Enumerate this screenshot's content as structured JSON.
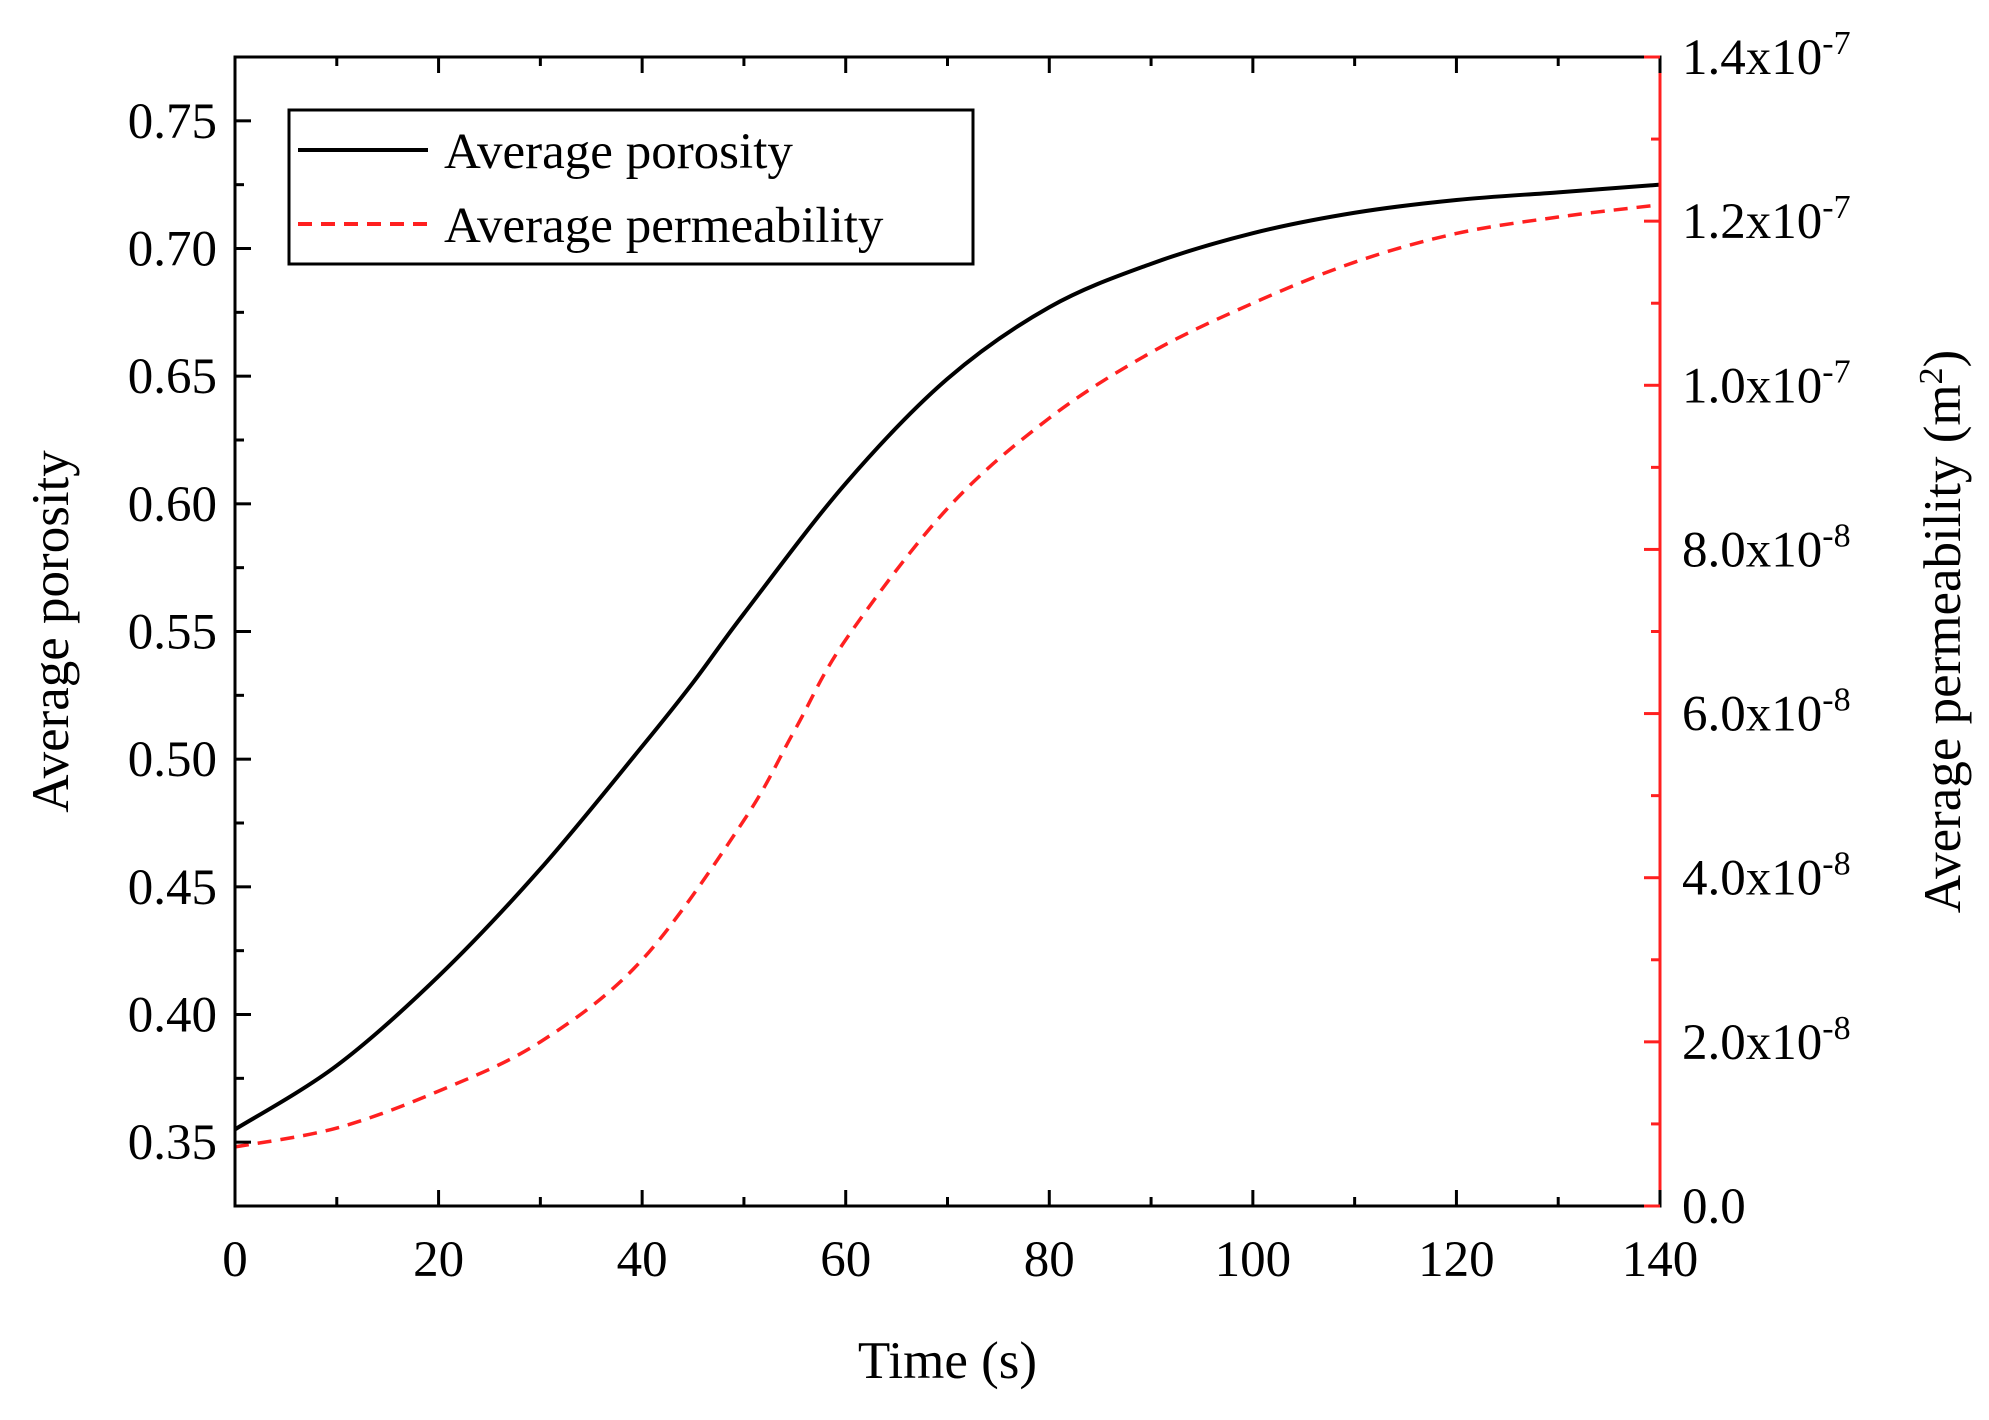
{
  "chart_data": {
    "type": "line",
    "title": "",
    "xlabel": "Time (s)",
    "ylabel_left": "Average porosity",
    "ylabel_right": {
      "text": "Average permeability (m",
      "sup": "2",
      "close": ")"
    },
    "xlim": [
      0,
      140
    ],
    "ylim_left": [
      0.325,
      0.775
    ],
    "ylim_right": [
      0,
      1.4e-07
    ],
    "x_ticks": [
      0,
      20,
      40,
      60,
      80,
      100,
      120,
      140
    ],
    "x_tick_labels": [
      "0",
      "20",
      "40",
      "60",
      "80",
      "100",
      "120",
      "140"
    ],
    "y_left_ticks": [
      0.35,
      0.4,
      0.45,
      0.5,
      0.55,
      0.6,
      0.65,
      0.7,
      0.75
    ],
    "y_left_tick_labels": [
      "0.35",
      "0.40",
      "0.45",
      "0.50",
      "0.55",
      "0.60",
      "0.65",
      "0.70",
      "0.75"
    ],
    "y_right_ticks": [
      {
        "value": 0,
        "mantissa": "0.0",
        "exp": ""
      },
      {
        "value": 2e-08,
        "mantissa": "2.0x10",
        "exp": "-8"
      },
      {
        "value": 4e-08,
        "mantissa": "4.0x10",
        "exp": "-8"
      },
      {
        "value": 6e-08,
        "mantissa": "6.0x10",
        "exp": "-8"
      },
      {
        "value": 8e-08,
        "mantissa": "8.0x10",
        "exp": "-8"
      },
      {
        "value": 1e-07,
        "mantissa": "1.0x10",
        "exp": "-7"
      },
      {
        "value": 1.2e-07,
        "mantissa": "1.2x10",
        "exp": "-7"
      },
      {
        "value": 1.4e-07,
        "mantissa": "1.4x10",
        "exp": "-7"
      }
    ],
    "legend_position": "top-left",
    "series": [
      {
        "name": "Average porosity",
        "axis": "left",
        "color": "#000000",
        "style": "solid",
        "x": [
          0,
          10,
          20,
          30,
          40,
          45,
          50,
          60,
          70,
          80,
          90,
          100,
          110,
          120,
          130,
          140
        ],
        "y": [
          0.355,
          0.38,
          0.415,
          0.457,
          0.505,
          0.53,
          0.557,
          0.608,
          0.649,
          0.677,
          0.694,
          0.706,
          0.714,
          0.719,
          0.722,
          0.725
        ]
      },
      {
        "name": "Average permeability",
        "axis": "right",
        "color": "#ff2020",
        "style": "dashed",
        "x": [
          0,
          10,
          20,
          30,
          40,
          50,
          55,
          60,
          70,
          80,
          90,
          100,
          110,
          120,
          130,
          140
        ],
        "y": [
          7.2e-09,
          9.5e-09,
          1.4e-08,
          2e-08,
          3e-08,
          4.7e-08,
          5.8e-08,
          6.9e-08,
          8.5e-08,
          9.6e-08,
          1.04e-07,
          1.1e-07,
          1.15e-07,
          1.185e-07,
          1.205e-07,
          1.22e-07
        ]
      }
    ]
  }
}
